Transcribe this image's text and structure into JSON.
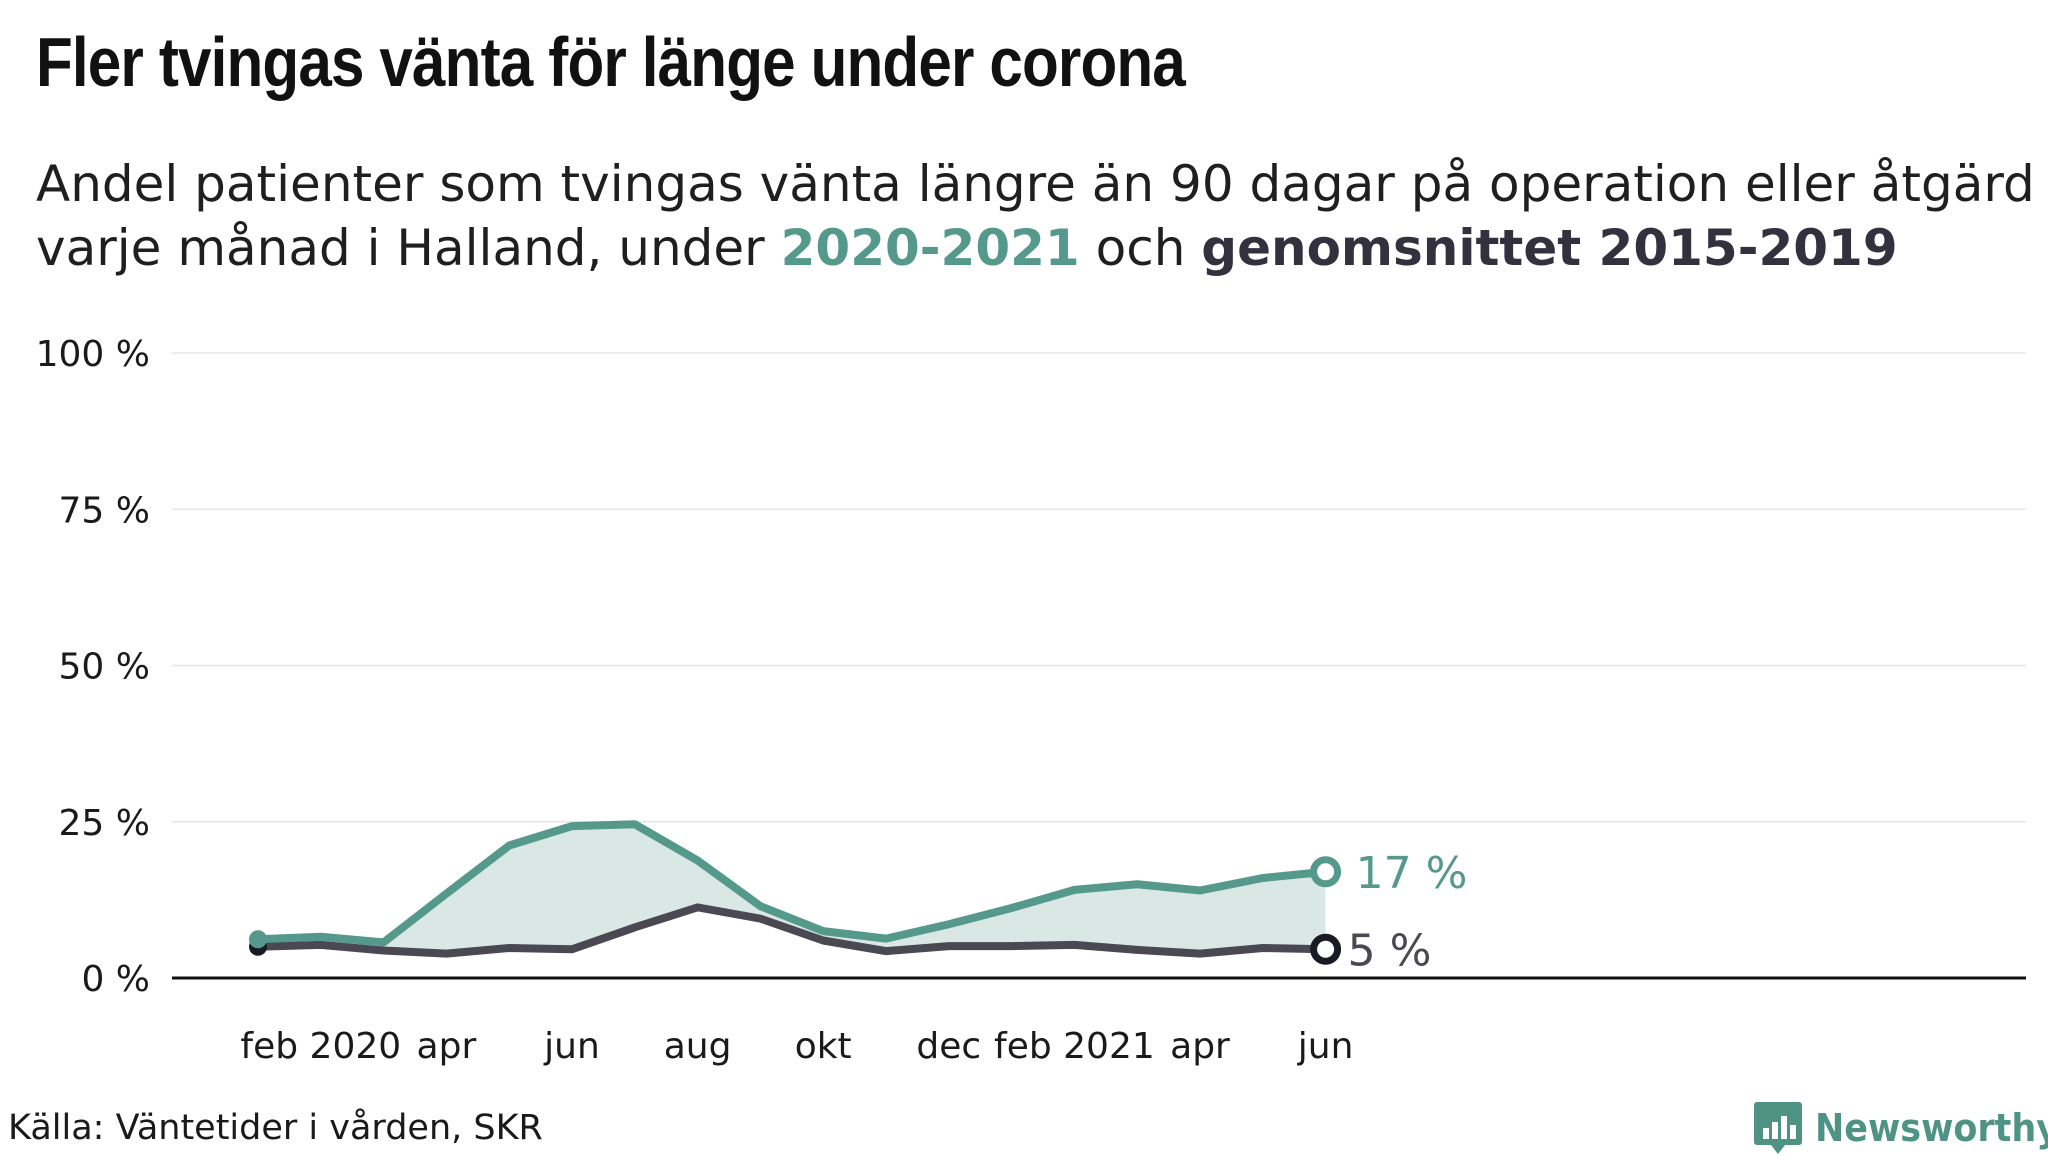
{
  "title": "Fler tvingas vänta för länge under corona",
  "subtitle": {
    "line1": "Andel patienter som tvingas vänta längre än 90 dagar på operation eller åtgärd",
    "line2_prefix": "varje månad i Halland, under ",
    "highlight_a": "2020-2021",
    "middle": " och ",
    "highlight_b": "genomsnittet 2015-2019"
  },
  "source": "Källa: Väntetider i vården, SKR",
  "brand": {
    "name": "Newsworthy",
    "icon": "newsworthy-bar-chart-logo-icon",
    "color": "#4f9385"
  },
  "colors": {
    "series_a": "#55998c",
    "series_b": "#4a4852",
    "area_fill": "#d9e8e4",
    "gridline": "#e6e6e6",
    "baseline": "#111111"
  },
  "chart_data": {
    "type": "line",
    "x": [
      "2020-01",
      "2020-02",
      "2020-03",
      "2020-04",
      "2020-05",
      "2020-06",
      "2020-07",
      "2020-08",
      "2020-09",
      "2020-10",
      "2020-11",
      "2020-12",
      "2021-01",
      "2021-02",
      "2021-03",
      "2021-04",
      "2021-05",
      "2021-06"
    ],
    "x_tick_labels": [
      {
        "x": "2020-02",
        "label": "feb 2020"
      },
      {
        "x": "2020-04",
        "label": "apr"
      },
      {
        "x": "2020-06",
        "label": "jun"
      },
      {
        "x": "2020-08",
        "label": "aug"
      },
      {
        "x": "2020-10",
        "label": "okt"
      },
      {
        "x": "2020-12",
        "label": "dec"
      },
      {
        "x": "2021-02",
        "label": "feb 2021"
      },
      {
        "x": "2021-04",
        "label": "apr"
      },
      {
        "x": "2021-06",
        "label": "jun"
      }
    ],
    "y_ticks": [
      0,
      25,
      50,
      75,
      100
    ],
    "y_tick_labels": [
      "0 %",
      "25 %",
      "50 %",
      "75 %",
      "100 %"
    ],
    "ylim": [
      0,
      100
    ],
    "series": [
      {
        "key": "a",
        "values": [
          6.2,
          6.6,
          5.7,
          13.5,
          21.2,
          24.3,
          24.6,
          18.8,
          11.5,
          7.5,
          6.3,
          8.6,
          11.2,
          14.1,
          15.0,
          14.0,
          16.0,
          17.0
        ],
        "end_label": "17 %"
      },
      {
        "key": "b",
        "values": [
          5.0,
          5.3,
          4.4,
          3.9,
          4.8,
          4.6,
          8.1,
          11.3,
          9.5,
          6.0,
          4.3,
          5.1,
          5.1,
          5.3,
          4.5,
          3.9,
          4.8,
          4.6
        ],
        "end_label": "5 %"
      }
    ],
    "fill_between": true,
    "grid": true,
    "legend": "none"
  }
}
